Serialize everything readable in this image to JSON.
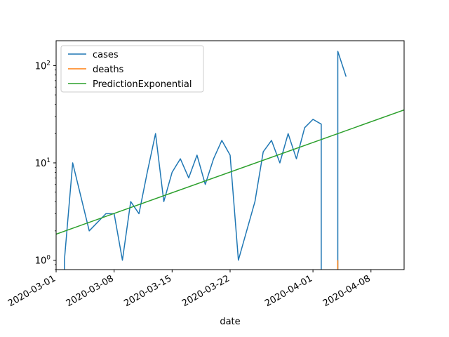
{
  "chart_data": {
    "type": "line",
    "xlabel": "date",
    "ylabel": "",
    "yscale": "log",
    "xlim": [
      "2020-03-01",
      "2020-04-12"
    ],
    "ylim": [
      0.8,
      180
    ],
    "x_ticks": [
      {
        "date": "2020-03-01",
        "label": "2020-03-01"
      },
      {
        "date": "2020-03-08",
        "label": "2020-03-08"
      },
      {
        "date": "2020-03-15",
        "label": "2020-03-15"
      },
      {
        "date": "2020-03-22",
        "label": "2020-03-22"
      },
      {
        "date": "2020-04-01",
        "label": "2020-04-01"
      },
      {
        "date": "2020-04-08",
        "label": "2020-04-08"
      }
    ],
    "y_ticks": [
      {
        "value": 1,
        "base": "10",
        "exp": "0"
      },
      {
        "value": 10,
        "base": "10",
        "exp": "1"
      },
      {
        "value": 100,
        "base": "10",
        "exp": "2"
      }
    ],
    "legend_position": "top-left",
    "grid": false,
    "series": [
      {
        "name": "cases",
        "color": "#1f77b4",
        "points": [
          [
            "2020-03-02",
            0.8
          ],
          [
            "2020-03-02",
            1
          ],
          [
            "2020-03-03",
            10
          ],
          [
            "2020-03-05",
            2
          ],
          [
            "2020-03-07",
            3
          ],
          [
            "2020-03-08",
            3
          ],
          [
            "2020-03-09",
            1
          ],
          [
            "2020-03-10",
            4
          ],
          [
            "2020-03-11",
            3
          ],
          [
            "2020-03-12",
            8
          ],
          [
            "2020-03-13",
            20
          ],
          [
            "2020-03-14",
            4
          ],
          [
            "2020-03-15",
            8
          ],
          [
            "2020-03-16",
            11
          ],
          [
            "2020-03-17",
            7
          ],
          [
            "2020-03-18",
            12
          ],
          [
            "2020-03-19",
            6
          ],
          [
            "2020-03-20",
            11
          ],
          [
            "2020-03-21",
            17
          ],
          [
            "2020-03-22",
            12
          ],
          [
            "2020-03-23",
            1
          ],
          [
            "2020-03-25",
            4
          ],
          [
            "2020-03-26",
            13
          ],
          [
            "2020-03-27",
            17
          ],
          [
            "2020-03-28",
            10
          ],
          [
            "2020-03-29",
            20
          ],
          [
            "2020-03-30",
            11
          ],
          [
            "2020-03-31",
            23
          ],
          [
            "2020-04-01",
            28
          ],
          [
            "2020-04-02",
            25
          ],
          [
            "2020-04-02",
            0.8
          ]
        ],
        "points_b": [
          [
            "2020-04-04",
            0.8
          ],
          [
            "2020-04-04",
            140
          ],
          [
            "2020-04-05",
            77
          ]
        ]
      },
      {
        "name": "deaths",
        "color": "#ff7f0e",
        "points": [
          [
            "2020-04-04",
            0.8
          ],
          [
            "2020-04-04",
            1
          ]
        ]
      },
      {
        "name": "PredictionExponential",
        "color": "#2ca02c",
        "points": [
          [
            "2020-03-01",
            1.85
          ],
          [
            "2020-04-12",
            35
          ]
        ]
      }
    ]
  }
}
